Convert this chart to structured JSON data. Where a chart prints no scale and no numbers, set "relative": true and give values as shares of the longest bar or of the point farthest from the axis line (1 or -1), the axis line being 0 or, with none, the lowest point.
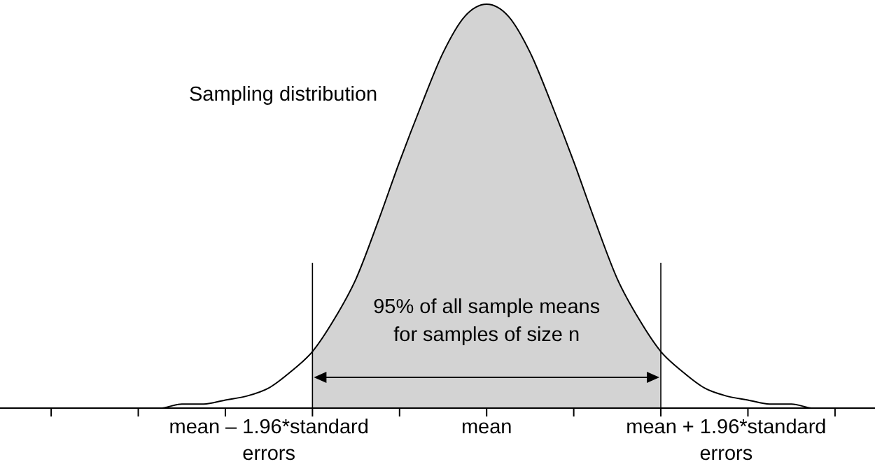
{
  "chart_data": {
    "type": "line",
    "relative": true,
    "categories": [
      null,
      null,
      null,
      null,
      null,
      null,
      null,
      null,
      null,
      null,
      null,
      "mean – 1.96*standard errors",
      null,
      null,
      null,
      null,
      null,
      null,
      null,
      null,
      null,
      "mean",
      null,
      null,
      null,
      null,
      null,
      null,
      null,
      null,
      null,
      null,
      "mean + 1.96*standard errors",
      null,
      null,
      null,
      null,
      null,
      null
    ],
    "series": [
      {
        "type": "area",
        "color": "#d3d3d3",
        "values": [
          null,
          null,
          null,
          null,
          null,
          null,
          null,
          null,
          null,
          null,
          null,
          null,
          null,
          0.14,
          0.22,
          0.32,
          0.46,
          0.61,
          0.75,
          0.88,
          0.97,
          1,
          0.97,
          0.88,
          0.75,
          0.61,
          0.46,
          0.32,
          0.22,
          0.14,
          null,
          null,
          null,
          null,
          null,
          null,
          null,
          null,
          null
        ]
      },
      {
        "color": "#000000",
        "values": [
          0,
          0,
          0,
          0,
          0,
          0,
          0,
          0.01,
          0.01,
          0.02,
          0.03,
          0.05,
          0.09,
          0.14,
          0.22,
          0.32,
          0.46,
          0.61,
          0.75,
          0.88,
          0.97,
          1,
          0.97,
          0.88,
          0.75,
          0.61,
          0.46,
          0.32,
          0.22,
          0.14,
          0.09,
          0.05,
          0.03,
          0.02,
          0.01,
          0.01,
          0,
          0,
          0
        ]
      }
    ],
    "annotations": [
      "Sampling distribution",
      "95% of all sample means for samples of size n"
    ]
  }
}
